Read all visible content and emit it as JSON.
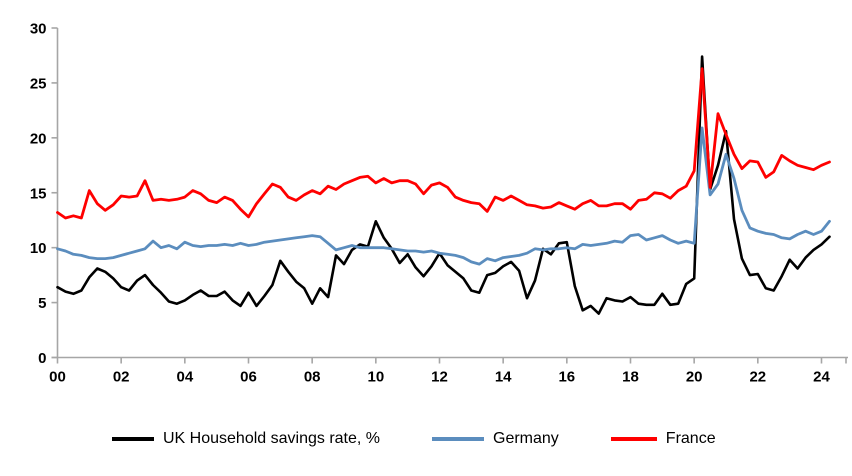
{
  "chart_data": {
    "type": "line",
    "title": "",
    "xlabel": "",
    "ylabel": "",
    "grid": false,
    "legend_position": "bottom",
    "x_unit": "quarterly",
    "x_start_year": 2000,
    "x_end": "2024 Q2",
    "x_tick_labels": [
      "00",
      "02",
      "04",
      "06",
      "08",
      "10",
      "12",
      "14",
      "16",
      "18",
      "20",
      "22",
      "24"
    ],
    "y_ticks": [
      0,
      5,
      10,
      15,
      20,
      25,
      30
    ],
    "ylim": [
      0,
      30
    ],
    "axis_color": "#a6a6a6",
    "series": [
      {
        "name": "UK Household savings rate, %",
        "color": "#000000",
        "values": [
          6.4,
          6.0,
          5.8,
          6.1,
          7.3,
          8.1,
          7.8,
          7.2,
          6.4,
          6.1,
          7.0,
          7.5,
          6.6,
          5.9,
          5.1,
          4.9,
          5.2,
          5.7,
          6.1,
          5.6,
          5.6,
          6.0,
          5.2,
          4.7,
          5.9,
          4.7,
          5.6,
          6.6,
          8.8,
          7.8,
          6.9,
          6.3,
          4.9,
          6.3,
          5.5,
          9.3,
          8.5,
          9.8,
          10.3,
          10.1,
          12.4,
          10.9,
          9.9,
          8.6,
          9.4,
          8.2,
          7.4,
          8.3,
          9.5,
          8.4,
          7.8,
          7.2,
          6.1,
          5.9,
          7.5,
          7.7,
          8.3,
          8.7,
          7.9,
          5.4,
          7.0,
          9.9,
          9.4,
          10.4,
          10.5,
          6.5,
          4.3,
          4.7,
          4.0,
          5.4,
          5.2,
          5.1,
          5.5,
          4.9,
          4.8,
          4.8,
          5.8,
          4.8,
          4.9,
          6.7,
          7.2,
          27.4,
          15.3,
          17.5,
          20.6,
          12.6,
          9.0,
          7.5,
          7.6,
          6.3,
          6.1,
          7.4,
          8.9,
          8.1,
          9.1,
          9.8,
          10.3,
          11.0
        ]
      },
      {
        "name": "Germany",
        "color": "#5b8dbe",
        "values": [
          9.9,
          9.7,
          9.4,
          9.3,
          9.1,
          9.0,
          9.0,
          9.1,
          9.3,
          9.5,
          9.7,
          9.9,
          10.6,
          10.0,
          10.2,
          9.9,
          10.5,
          10.2,
          10.1,
          10.2,
          10.2,
          10.3,
          10.2,
          10.4,
          10.2,
          10.3,
          10.5,
          10.6,
          10.7,
          10.8,
          10.9,
          11.0,
          11.1,
          11.0,
          10.4,
          9.8,
          10.0,
          10.2,
          10.0,
          10.0,
          10.0,
          10.0,
          9.9,
          9.8,
          9.7,
          9.7,
          9.6,
          9.7,
          9.5,
          9.4,
          9.3,
          9.1,
          8.7,
          8.5,
          9.0,
          8.8,
          9.1,
          9.2,
          9.3,
          9.5,
          9.9,
          9.8,
          9.9,
          9.9,
          10.0,
          9.9,
          10.3,
          10.2,
          10.3,
          10.4,
          10.6,
          10.5,
          11.1,
          11.2,
          10.7,
          10.9,
          11.1,
          10.7,
          10.4,
          10.6,
          10.4,
          20.9,
          14.8,
          15.8,
          18.5,
          16.3,
          13.4,
          11.8,
          11.5,
          11.3,
          11.2,
          10.9,
          10.8,
          11.2,
          11.5,
          11.2,
          11.5,
          12.4
        ]
      },
      {
        "name": "France",
        "color": "#ff0000",
        "values": [
          13.2,
          12.7,
          12.9,
          12.7,
          15.2,
          14.0,
          13.4,
          13.9,
          14.7,
          14.6,
          14.7,
          16.1,
          14.3,
          14.4,
          14.3,
          14.4,
          14.6,
          15.2,
          14.9,
          14.3,
          14.1,
          14.6,
          14.3,
          13.5,
          12.8,
          14.0,
          14.9,
          15.8,
          15.5,
          14.6,
          14.3,
          14.8,
          15.2,
          14.9,
          15.6,
          15.3,
          15.8,
          16.1,
          16.4,
          16.5,
          15.9,
          16.3,
          15.9,
          16.1,
          16.1,
          15.8,
          14.9,
          15.7,
          15.9,
          15.5,
          14.6,
          14.3,
          14.1,
          14.0,
          13.3,
          14.6,
          14.3,
          14.7,
          14.3,
          13.9,
          13.8,
          13.6,
          13.7,
          14.1,
          13.8,
          13.5,
          14.0,
          14.3,
          13.8,
          13.8,
          14.0,
          14.0,
          13.5,
          14.3,
          14.4,
          15.0,
          14.9,
          14.5,
          15.2,
          15.6,
          17.0,
          26.3,
          15.5,
          22.2,
          20.3,
          18.5,
          17.2,
          17.9,
          17.8,
          16.4,
          16.9,
          18.4,
          17.9,
          17.5,
          17.3,
          17.1,
          17.5,
          17.8
        ]
      }
    ]
  },
  "legend": {
    "swatch_widths": [
      42,
      52,
      46
    ]
  }
}
